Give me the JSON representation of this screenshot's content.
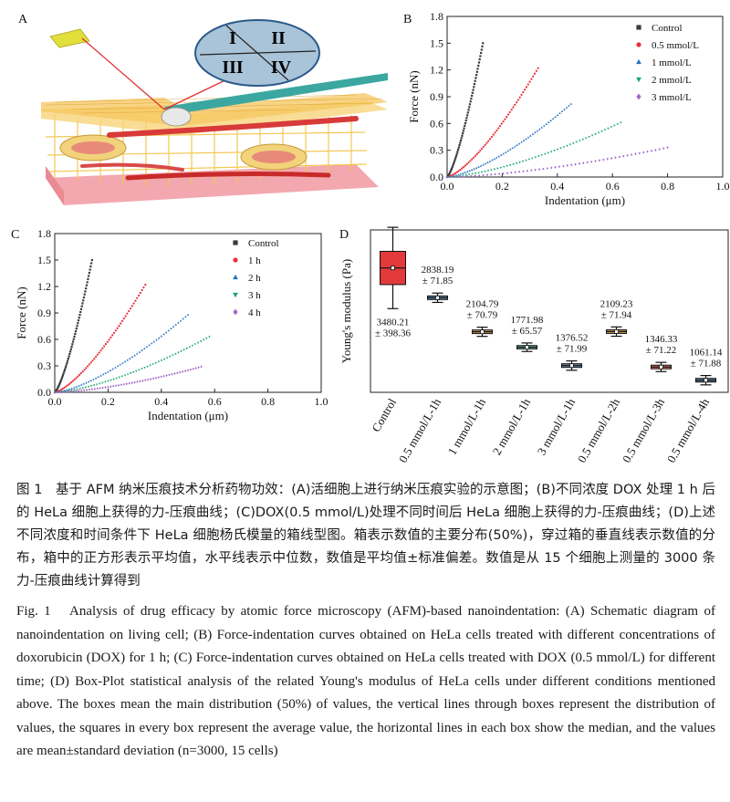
{
  "panels": {
    "A": "A",
    "B": "B",
    "C": "C",
    "D": "D",
    "quadrants": [
      "I",
      "II",
      "III",
      "IV"
    ]
  },
  "colors": {
    "control": "#3a3a3a",
    "red": "#e8303a",
    "blue": "#2472c0",
    "green": "#16a56a",
    "purple": "#a066c8",
    "box_red": "#e23a3a",
    "box_blue": "#5a8fb8",
    "box_orange": "#c89a5a",
    "box_green": "#5ab08a",
    "box_slate": "#6a88a8"
  },
  "chart_data": [
    {
      "panel": "B",
      "type": "scatter",
      "xlabel": "Indentation (μm)",
      "ylabel": "Force (nN)",
      "xlim": [
        0,
        1.0
      ],
      "ylim": [
        0,
        1.8
      ],
      "xticks": [
        "0.0",
        "0.2",
        "0.4",
        "0.6",
        "0.8",
        "1.0"
      ],
      "yticks": [
        "0.0",
        "0.3",
        "0.6",
        "0.9",
        "1.2",
        "1.5",
        "1.8"
      ],
      "legend_position": "top-right",
      "series": [
        {
          "name": "Control",
          "marker": "square",
          "color": "#3a3a3a",
          "xmax": 0.13,
          "ymax": 1.5
        },
        {
          "name": "0.5 mmol/L",
          "marker": "circle",
          "color": "#e8303a",
          "xmax": 0.33,
          "ymax": 1.22
        },
        {
          "name": "1 mmol/L",
          "marker": "triangle-up",
          "color": "#2472c0",
          "xmax": 0.45,
          "ymax": 0.82
        },
        {
          "name": "2 mmol/L",
          "marker": "triangle-down",
          "color": "#16a56a",
          "xmax": 0.63,
          "ymax": 0.61
        },
        {
          "name": "3 mmol/L",
          "marker": "diamond",
          "color": "#a066c8",
          "xmax": 0.8,
          "ymax": 0.33
        }
      ]
    },
    {
      "panel": "C",
      "type": "scatter",
      "xlabel": "Indentation (μm)",
      "ylabel": "Force (nN)",
      "xlim": [
        0,
        1.0
      ],
      "ylim": [
        0,
        1.8
      ],
      "xticks": [
        "0.0",
        "0.2",
        "0.4",
        "0.6",
        "0.8",
        "1.0"
      ],
      "yticks": [
        "0.0",
        "0.3",
        "0.6",
        "0.9",
        "1.2",
        "1.5",
        "1.8"
      ],
      "legend_position": "top-right",
      "series": [
        {
          "name": "Control",
          "marker": "square",
          "color": "#3a3a3a",
          "xmax": 0.14,
          "ymax": 1.5
        },
        {
          "name": "1 h",
          "marker": "circle",
          "color": "#e8303a",
          "xmax": 0.34,
          "ymax": 1.22
        },
        {
          "name": "2 h",
          "marker": "triangle-up",
          "color": "#2472c0",
          "xmax": 0.5,
          "ymax": 0.88
        },
        {
          "name": "3 h",
          "marker": "triangle-down",
          "color": "#16a56a",
          "xmax": 0.58,
          "ymax": 0.63
        },
        {
          "name": "4 h",
          "marker": "diamond",
          "color": "#a066c8",
          "xmax": 0.55,
          "ymax": 0.29
        }
      ]
    },
    {
      "panel": "D",
      "type": "box",
      "ylabel": "Young's modulus (Pa)",
      "categories": [
        "Control",
        "0.5 mmol/L-1h",
        "1 mmol/L-1h",
        "2 mmol/L-1h",
        "3 mmol/L-1h",
        "0.5 mmol/L-2h",
        "0.5 mmol/L-3h",
        "0.5 mmol/L-4h"
      ],
      "means": [
        3480.21,
        2838.19,
        2104.79,
        1771.98,
        1376.52,
        2109.23,
        1346.33,
        1061.14
      ],
      "sd": [
        398.36,
        71.85,
        70.79,
        65.57,
        71.99,
        71.94,
        71.22,
        71.88
      ],
      "mean_labels": [
        "3480.21",
        "2838.19",
        "2104.79",
        "1771.98",
        "1376.52",
        "2109.23",
        "1346.33",
        "1061.14"
      ],
      "sd_labels": [
        "± 398.36",
        "± 71.85",
        "± 70.79",
        "± 65.57",
        "± 71.99",
        "± 71.94",
        "± 71.22",
        "± 71.88"
      ],
      "box_colors": [
        "#e23a3a",
        "#5a8fb8",
        "#c89a5a",
        "#5ab08a",
        "#6a88a8",
        "#c89a5a",
        "#e07060",
        "#6a88a8"
      ]
    }
  ],
  "caption_zh": "图 1　基于 AFM 纳米压痕技术分析药物功效：(A)活细胞上进行纳米压痕实验的示意图；(B)不同浓度 DOX 处理 1 h 后的 HeLa 细胞上获得的力-压痕曲线；(C)DOX(0.5 mmol/L)处理不同时间后 HeLa 细胞上获得的力-压痕曲线；(D)上述不同浓度和时间条件下 HeLa 细胞杨氏模量的箱线型图。箱表示数值的主要分布(50%)，穿过箱的垂直线表示数值的分布，箱中的正方形表示平均值，水平线表示中位数，数值是平均值±标准偏差。数值是从 15 个细胞上测量的 3000 条力-压痕曲线计算得到",
  "caption_en": "Fig. 1　Analysis of drug efficacy by atomic force microscopy (AFM)-based nanoindentation: (A) Schematic diagram of nanoindentation on living cell; (B) Force-indentation curves obtained on HeLa cells treated with different concentrations of doxorubicin (DOX) for 1 h; (C) Force-indentation curves obtained on HeLa cells treated with DOX (0.5 mmol/L) for different time; (D) Box-Plot statistical analysis of the related Young's modulus of HeLa cells under different conditions mentioned above. The boxes mean the main distribution (50%) of values, the vertical lines through boxes represent the distribution of values, the squares in every box represent the average value, the horizontal lines in each box show the median, and the values are mean±standard deviation (n=3000, 15 cells)"
}
